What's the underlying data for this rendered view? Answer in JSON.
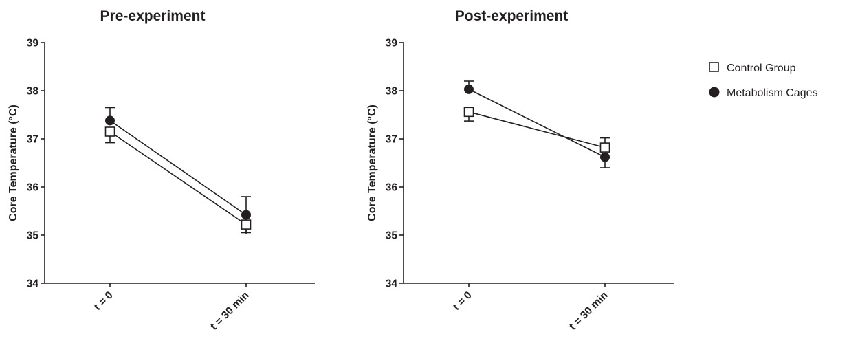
{
  "chart_data": [
    {
      "type": "line",
      "title": "Pre-experiment",
      "ylabel": "Core Temperature (°C)",
      "xlabel": "",
      "categories": [
        "t = 0",
        "t = 30 min"
      ],
      "ylim": [
        34,
        39
      ],
      "yticks": [
        "34",
        "35",
        "36",
        "37",
        "38",
        "39"
      ],
      "grid": false,
      "series": [
        {
          "name": "Control Group",
          "marker": "open-square",
          "values": [
            37.15,
            35.22
          ],
          "err_low": [
            36.92,
            35.05
          ],
          "err_high": [
            37.15,
            35.22
          ]
        },
        {
          "name": "Metabolism Cages",
          "marker": "filled-circle",
          "values": [
            37.38,
            35.42
          ],
          "err_low": [
            37.38,
            35.02
          ],
          "err_high": [
            37.65,
            35.8
          ]
        }
      ]
    },
    {
      "type": "line",
      "title": "Post-experiment",
      "ylabel": "Core Temperature (°C)",
      "xlabel": "",
      "categories": [
        "t = 0",
        "t = 30 min"
      ],
      "ylim": [
        34,
        39
      ],
      "yticks": [
        "34",
        "35",
        "36",
        "37",
        "38",
        "39"
      ],
      "grid": false,
      "series": [
        {
          "name": "Control Group",
          "marker": "open-square",
          "values": [
            37.56,
            36.82
          ],
          "err_low": [
            37.37,
            36.82
          ],
          "err_high": [
            37.56,
            37.02
          ]
        },
        {
          "name": "Metabolism Cages",
          "marker": "filled-circle",
          "values": [
            38.03,
            36.62
          ],
          "err_low": [
            38.03,
            36.4
          ],
          "err_high": [
            38.2,
            36.62
          ]
        }
      ]
    }
  ],
  "legend": {
    "placement": "right",
    "items": [
      {
        "label": "Control Group",
        "marker": "open-square"
      },
      {
        "label": "Metabolism Cages",
        "marker": "filled-circle"
      }
    ]
  },
  "colors": {
    "ink": "#231f20",
    "background": "#ffffff"
  }
}
